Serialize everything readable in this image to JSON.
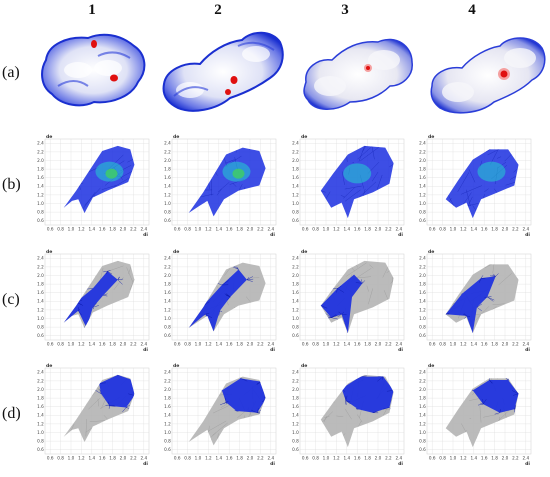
{
  "columns": [
    "1",
    "2",
    "3",
    "4"
  ],
  "rows": [
    "(a)",
    "(b)",
    "(c)",
    "(d)"
  ],
  "fingerprint": {
    "y_axis_label": "de",
    "x_axis_label": "di",
    "y_ticks": [
      "2.4",
      "2.2",
      "2.0",
      "1.8",
      "1.6",
      "1.4",
      "1.2",
      "1.0",
      "0.8",
      "0.6"
    ],
    "x_ticks": [
      "0.6",
      "0.8",
      "1.0",
      "1.2",
      "1.4",
      "1.6",
      "1.8",
      "2.0",
      "2.2",
      "2.4"
    ]
  },
  "colors": {
    "surface_blue": "#1a2fd0",
    "surface_white": "#f2f2f8",
    "contact_red": "#e01010",
    "fingerprint_blue": "#1b2fe0",
    "fingerprint_cyan": "#22d0d0",
    "fingerprint_green": "#40d060",
    "fingerprint_gray": "#b4b4b4",
    "grid": "#dcdcdc"
  }
}
